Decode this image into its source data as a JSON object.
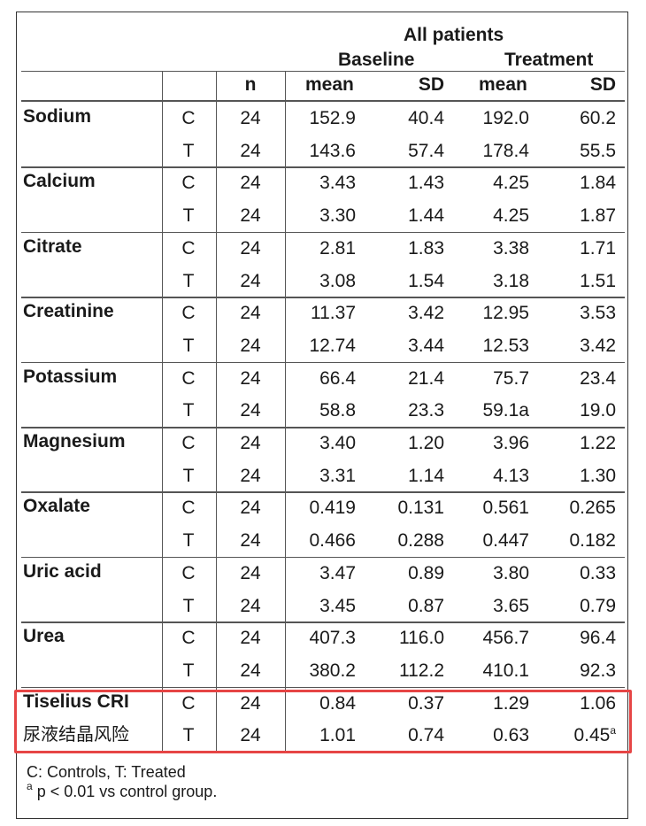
{
  "header": {
    "group": "All patients",
    "baseline": "Baseline",
    "treatment": "Treatment",
    "col_n": "n",
    "col_mean1": "mean",
    "col_sd1": "SD",
    "col_mean2": "mean",
    "col_sd2": "SD"
  },
  "rows": [
    {
      "name": "Sodium",
      "C": {
        "group": "C",
        "n": "24",
        "bm": "152.9",
        "bsd": "40.4",
        "tm": "192.0",
        "tsd": "60.2"
      },
      "T": {
        "group": "T",
        "n": "24",
        "bm": "143.6",
        "bsd": "57.4",
        "tm": "178.4",
        "tsd": "55.5"
      }
    },
    {
      "name": "Calcium",
      "C": {
        "group": "C",
        "n": "24",
        "bm": "3.43",
        "bsd": "1.43",
        "tm": "4.25",
        "tsd": "1.84"
      },
      "T": {
        "group": "T",
        "n": "24",
        "bm": "3.30",
        "bsd": "1.44",
        "tm": "4.25",
        "tsd": "1.87"
      }
    },
    {
      "name": "Citrate",
      "C": {
        "group": "C",
        "n": "24",
        "bm": "2.81",
        "bsd": "1.83",
        "tm": "3.38",
        "tsd": "1.71"
      },
      "T": {
        "group": "T",
        "n": "24",
        "bm": "3.08",
        "bsd": "1.54",
        "tm": "3.18",
        "tsd": "1.51"
      }
    },
    {
      "name": "Creatinine",
      "C": {
        "group": "C",
        "n": "24",
        "bm": "11.37",
        "bsd": "3.42",
        "tm": "12.95",
        "tsd": "3.53"
      },
      "T": {
        "group": "T",
        "n": "24",
        "bm": "12.74",
        "bsd": "3.44",
        "tm": "12.53",
        "tsd": "3.42"
      }
    },
    {
      "name": "Potassium",
      "C": {
        "group": "C",
        "n": "24",
        "bm": "66.4",
        "bsd": "21.4",
        "tm": "75.7",
        "tsd": "23.4"
      },
      "T": {
        "group": "T",
        "n": "24",
        "bm": "58.8",
        "bsd": "23.3",
        "tm": "59.1a",
        "tsd": "19.0"
      }
    },
    {
      "name": "Magnesium",
      "C": {
        "group": "C",
        "n": "24",
        "bm": "3.40",
        "bsd": "1.20",
        "tm": "3.96",
        "tsd": "1.22"
      },
      "T": {
        "group": "T",
        "n": "24",
        "bm": "3.31",
        "bsd": "1.14",
        "tm": "4.13",
        "tsd": "1.30"
      }
    },
    {
      "name": "Oxalate",
      "C": {
        "group": "C",
        "n": "24",
        "bm": "0.419",
        "bsd": "0.131",
        "tm": "0.561",
        "tsd": "0.265"
      },
      "T": {
        "group": "T",
        "n": "24",
        "bm": "0.466",
        "bsd": "0.288",
        "tm": "0.447",
        "tsd": "0.182"
      }
    },
    {
      "name": "Uric acid",
      "C": {
        "group": "C",
        "n": "24",
        "bm": "3.47",
        "bsd": "0.89",
        "tm": "3.80",
        "tsd": "0.33"
      },
      "T": {
        "group": "T",
        "n": "24",
        "bm": "3.45",
        "bsd": "0.87",
        "tm": "3.65",
        "tsd": "0.79"
      }
    },
    {
      "name": "Urea",
      "C": {
        "group": "C",
        "n": "24",
        "bm": "407.3",
        "bsd": "116.0",
        "tm": "456.7",
        "tsd": "96.4"
      },
      "T": {
        "group": "T",
        "n": "24",
        "bm": "380.2",
        "bsd": "112.2",
        "tm": "410.1",
        "tsd": "92.3"
      }
    },
    {
      "name": "Tiselius CRI",
      "subname": "尿液结晶风险",
      "C": {
        "group": "C",
        "n": "24",
        "bm": "0.84",
        "bsd": "0.37",
        "tm": "1.29",
        "tsd": "1.06"
      },
      "T": {
        "group": "T",
        "n": "24",
        "bm": "1.01",
        "bsd": "0.74",
        "tm": "0.63",
        "tsd": "0.45",
        "tsd_sup": "a"
      }
    }
  ],
  "footnotes": {
    "legend": "C: Controls, T: Treated",
    "sup": "a",
    "note": " p < 0.01 vs control group."
  },
  "colors": {
    "highlight": "#e64545",
    "rule": "#555555"
  }
}
